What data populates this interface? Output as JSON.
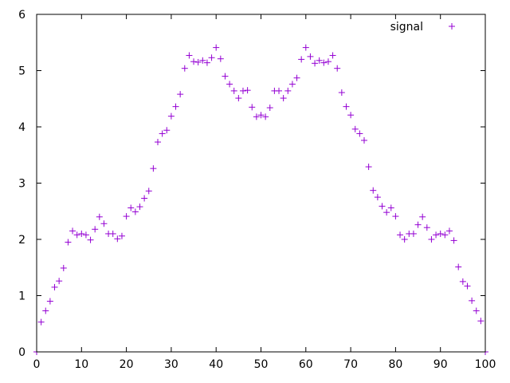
{
  "chart_data": {
    "type": "scatter",
    "title": "",
    "xlabel": "",
    "ylabel": "",
    "xlim": [
      0,
      100
    ],
    "ylim": [
      0,
      6
    ],
    "x_ticks": [
      "0",
      "10",
      "20",
      "30",
      "40",
      "50",
      "60",
      "70",
      "80",
      "90",
      "100"
    ],
    "y_ticks": [
      "0",
      "1",
      "2",
      "3",
      "4",
      "5",
      "6"
    ],
    "grid": false,
    "legend_position": "top-right",
    "marker": "plus",
    "color": "#9400d3",
    "series": [
      {
        "name": "signal",
        "x": [
          0,
          1,
          2,
          3,
          4,
          5,
          6,
          7,
          8,
          9,
          10,
          11,
          12,
          13,
          14,
          15,
          16,
          17,
          18,
          19,
          20,
          21,
          22,
          23,
          24,
          25,
          26,
          27,
          28,
          29,
          30,
          31,
          32,
          33,
          34,
          35,
          36,
          37,
          38,
          39,
          40,
          41,
          42,
          43,
          44,
          45,
          46,
          47,
          48,
          49,
          50,
          51,
          52,
          53,
          54,
          55,
          56,
          57,
          58,
          59,
          60,
          61,
          62,
          63,
          64,
          65,
          66,
          67,
          68,
          69,
          70,
          71,
          72,
          73,
          74,
          75,
          76,
          77,
          78,
          79,
          80,
          81,
          82,
          83,
          84,
          85,
          86,
          87,
          88,
          89,
          90,
          91,
          92,
          93,
          94,
          95,
          96,
          97,
          98,
          99,
          100
        ],
        "y": [
          0.0,
          0.53,
          0.73,
          0.9,
          1.15,
          1.26,
          1.49,
          1.95,
          2.15,
          2.08,
          2.1,
          2.08,
          1.99,
          2.18,
          2.4,
          2.28,
          2.1,
          2.1,
          2.01,
          2.06,
          2.41,
          2.56,
          2.49,
          2.58,
          2.73,
          2.86,
          3.26,
          3.73,
          3.88,
          3.94,
          4.19,
          4.36,
          4.58,
          5.04,
          5.27,
          5.16,
          5.15,
          5.18,
          5.14,
          5.23,
          5.41,
          5.21,
          4.9,
          4.76,
          4.64,
          4.51,
          4.64,
          4.65,
          4.35,
          4.18,
          4.21,
          4.18,
          4.34,
          4.64,
          4.64,
          4.51,
          4.64,
          4.76,
          4.87,
          5.2,
          5.41,
          5.25,
          5.13,
          5.18,
          5.14,
          5.16,
          5.27,
          5.04,
          4.61,
          4.36,
          4.21,
          3.96,
          3.88,
          3.76,
          3.29,
          2.87,
          2.75,
          2.59,
          2.48,
          2.56,
          2.41,
          2.08,
          2.0,
          2.1,
          2.1,
          2.26,
          2.4,
          2.21,
          2.0,
          2.08,
          2.1,
          2.08,
          2.15,
          1.98,
          1.51,
          1.25,
          1.17,
          0.91,
          0.73,
          0.55,
          0.0
        ]
      }
    ]
  }
}
